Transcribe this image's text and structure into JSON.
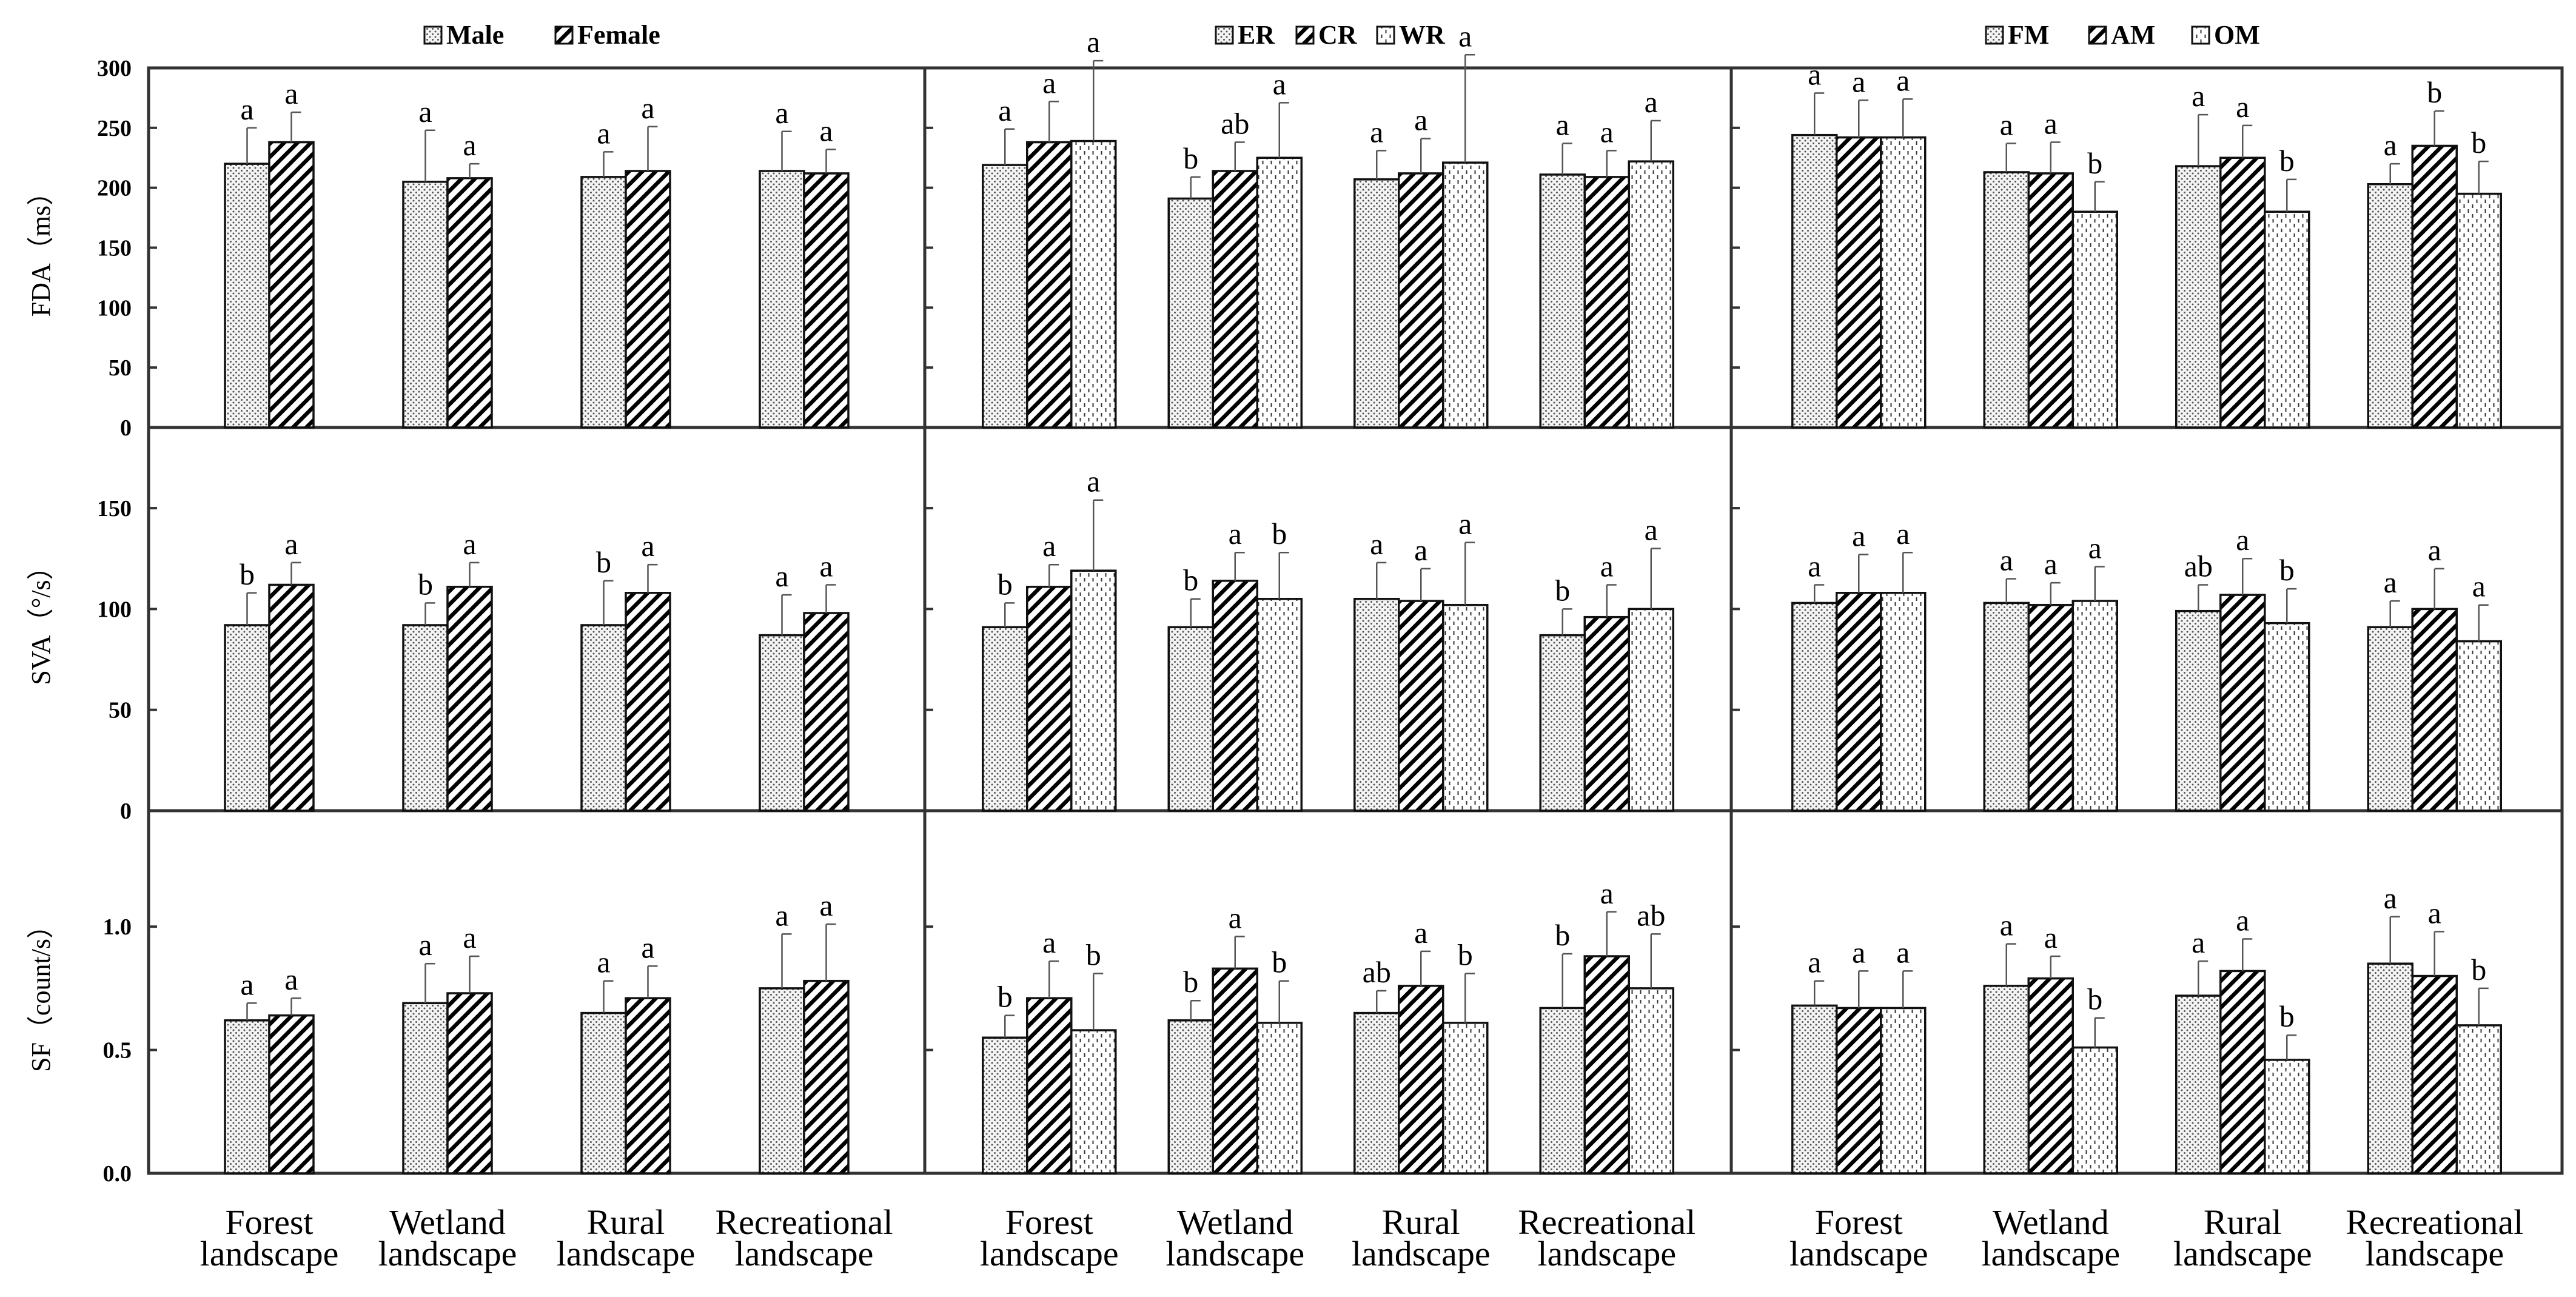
{
  "figure": {
    "landscapes": [
      "Forest landscape",
      "Wetland landscape",
      "Rural landscape",
      "Recreational landscape"
    ],
    "landscape_lines": [
      [
        "Forest",
        "landscape"
      ],
      [
        "Wetland",
        "landscape"
      ],
      [
        "Rural",
        "landscape"
      ],
      [
        "Recreational",
        "landscape"
      ]
    ],
    "patterns": {
      "dots": "fine dotted fill (Male / ER / FM)",
      "diag": "bold diagonal hatch (Female / CR / AM)",
      "dash": "vertical dashed fill (WR / OM)"
    }
  },
  "chart_data": [
    {
      "type": "bar",
      "grouping": "Gender",
      "title": "",
      "legend": [
        {
          "name": "Male",
          "pattern": "dots"
        },
        {
          "name": "Female",
          "pattern": "diag"
        }
      ],
      "categories": [
        "Forest landscape",
        "Wetland landscape",
        "Rural landscape",
        "Recreational landscape"
      ],
      "rows": [
        {
          "ylabel": "FDA（ms）",
          "ylim": [
            0,
            300
          ],
          "ticks": [
            0,
            50,
            100,
            150,
            200,
            250,
            300
          ],
          "tick_labels": [
            "0",
            "50",
            "100",
            "150",
            "200",
            "250",
            "300"
          ],
          "series": [
            {
              "name": "Male",
              "values": [
                220,
                205,
                209,
                214
              ],
              "errors": [
                30,
                43,
                21,
                33
              ],
              "letters": [
                "a",
                "a",
                "a",
                "a"
              ]
            },
            {
              "name": "Female",
              "values": [
                238,
                208,
                214,
                212
              ],
              "errors": [
                25,
                12,
                37,
                20
              ],
              "letters": [
                "a",
                "a",
                "a",
                "a"
              ]
            }
          ]
        },
        {
          "ylabel": "SVA（°/s）",
          "ylim": [
            0,
            190
          ],
          "ticks": [
            0,
            50,
            100,
            150
          ],
          "tick_labels": [
            "0",
            "50",
            "100",
            "150"
          ],
          "series": [
            {
              "name": "Male",
              "values": [
                92,
                92,
                92,
                87
              ],
              "errors": [
                16,
                11,
                22,
                20
              ],
              "letters": [
                "b",
                "b",
                "b",
                "a"
              ]
            },
            {
              "name": "Female",
              "values": [
                112,
                111,
                108,
                98
              ],
              "errors": [
                11,
                12,
                14,
                14
              ],
              "letters": [
                "a",
                "a",
                "a",
                "a"
              ]
            }
          ]
        },
        {
          "ylabel": "SF（count/s）",
          "ylim": [
            0,
            1.47
          ],
          "ticks": [
            0,
            0.5,
            1.0
          ],
          "tick_labels": [
            "0.0",
            "0.5",
            "1.0"
          ],
          "series": [
            {
              "name": "Male",
              "values": [
                0.62,
                0.69,
                0.65,
                0.75
              ],
              "errors": [
                0.07,
                0.16,
                0.13,
                0.22
              ],
              "letters": [
                "a",
                "a",
                "a",
                "a"
              ]
            },
            {
              "name": "Female",
              "values": [
                0.64,
                0.73,
                0.71,
                0.78
              ],
              "errors": [
                0.07,
                0.15,
                0.13,
                0.23
              ],
              "letters": [
                "a",
                "a",
                "a",
                "a"
              ]
            }
          ]
        }
      ]
    },
    {
      "type": "bar",
      "grouping": "Residence",
      "title": "",
      "legend": [
        {
          "name": "ER",
          "pattern": "dots"
        },
        {
          "name": "CR",
          "pattern": "diag"
        },
        {
          "name": "WR",
          "pattern": "dash"
        }
      ],
      "categories": [
        "Forest landscape",
        "Wetland landscape",
        "Rural landscape",
        "Recreational landscape"
      ],
      "rows": [
        {
          "ylabel": "FDA（ms）",
          "ylim": [
            0,
            300
          ],
          "series": [
            {
              "name": "ER",
              "values": [
                219,
                191,
                207,
                211
              ],
              "errors": [
                30,
                18,
                24,
                26
              ],
              "letters": [
                "a",
                "b",
                "a",
                "a"
              ]
            },
            {
              "name": "CR",
              "values": [
                238,
                214,
                212,
                209
              ],
              "errors": [
                34,
                24,
                29,
                22
              ],
              "letters": [
                "a",
                "ab",
                "a",
                "a"
              ]
            },
            {
              "name": "WR",
              "values": [
                239,
                225,
                221,
                222
              ],
              "errors": [
                67,
                46,
                90,
                34
              ],
              "letters": [
                "a",
                "a",
                "a",
                "a"
              ]
            }
          ]
        },
        {
          "ylabel": "SVA（°/s）",
          "ylim": [
            0,
            190
          ],
          "series": [
            {
              "name": "ER",
              "values": [
                91,
                91,
                105,
                87
              ],
              "errors": [
                12,
                14,
                18,
                13
              ],
              "letters": [
                "b",
                "b",
                "a",
                "b"
              ]
            },
            {
              "name": "CR",
              "values": [
                111,
                114,
                104,
                96
              ],
              "errors": [
                11,
                14,
                16,
                16
              ],
              "letters": [
                "a",
                "a",
                "a",
                "a"
              ]
            },
            {
              "name": "WR",
              "values": [
                119,
                105,
                102,
                100
              ],
              "errors": [
                35,
                23,
                31,
                30
              ],
              "letters": [
                "a",
                "b",
                "a",
                "a"
              ]
            }
          ]
        },
        {
          "ylabel": "SF（count/s）",
          "ylim": [
            0,
            1.47
          ],
          "series": [
            {
              "name": "ER",
              "values": [
                0.55,
                0.62,
                0.65,
                0.67
              ],
              "errors": [
                0.09,
                0.08,
                0.09,
                0.22
              ],
              "letters": [
                "b",
                "b",
                "ab",
                "b"
              ]
            },
            {
              "name": "CR",
              "values": [
                0.71,
                0.83,
                0.76,
                0.88
              ],
              "errors": [
                0.15,
                0.13,
                0.14,
                0.18
              ],
              "letters": [
                "a",
                "a",
                "a",
                "a"
              ]
            },
            {
              "name": "WR",
              "values": [
                0.58,
                0.61,
                0.61,
                0.75
              ],
              "errors": [
                0.23,
                0.17,
                0.2,
                0.22
              ],
              "letters": [
                "b",
                "b",
                "b",
                "ab"
              ]
            }
          ]
        }
      ]
    },
    {
      "type": "bar",
      "grouping": "Identity",
      "title": "",
      "legend": [
        {
          "name": "FM",
          "pattern": "dots"
        },
        {
          "name": "AM",
          "pattern": "diag"
        },
        {
          "name": "OM",
          "pattern": "dash"
        }
      ],
      "categories": [
        "Forest landscape",
        "Wetland landscape",
        "Rural landscape",
        "Recreational landscape"
      ],
      "rows": [
        {
          "ylabel": "FDA（ms）",
          "ylim": [
            0,
            300
          ],
          "series": [
            {
              "name": "FM",
              "values": [
                244,
                213,
                218,
                203
              ],
              "errors": [
                35,
                24,
                43,
                17
              ],
              "letters": [
                "a",
                "a",
                "a",
                "a"
              ]
            },
            {
              "name": "AM",
              "values": [
                242,
                212,
                225,
                235
              ],
              "errors": [
                31,
                26,
                27,
                29
              ],
              "letters": [
                "a",
                "a",
                "a",
                "b"
              ]
            },
            {
              "name": "OM",
              "values": [
                242,
                180,
                180,
                195
              ],
              "errors": [
                32,
                25,
                27,
                27
              ],
              "letters": [
                "a",
                "b",
                "b",
                "b"
              ]
            }
          ]
        },
        {
          "ylabel": "SVA（°/s）",
          "ylim": [
            0,
            190
          ],
          "series": [
            {
              "name": "FM",
              "values": [
                103,
                103,
                99,
                91
              ],
              "errors": [
                9,
                12,
                13,
                13
              ],
              "letters": [
                "a",
                "a",
                "ab",
                "a"
              ]
            },
            {
              "name": "AM",
              "values": [
                108,
                102,
                107,
                100
              ],
              "errors": [
                19,
                11,
                18,
                20
              ],
              "letters": [
                "a",
                "a",
                "a",
                "a"
              ]
            },
            {
              "name": "OM",
              "values": [
                108,
                104,
                93,
                84
              ],
              "errors": [
                20,
                17,
                17,
                18
              ],
              "letters": [
                "a",
                "a",
                "b",
                "a"
              ]
            }
          ]
        },
        {
          "ylabel": "SF（count/s）",
          "ylim": [
            0,
            1.47
          ],
          "series": [
            {
              "name": "FM",
              "values": [
                0.68,
                0.76,
                0.72,
                0.85
              ],
              "errors": [
                0.1,
                0.17,
                0.14,
                0.19
              ],
              "letters": [
                "a",
                "a",
                "a",
                "a"
              ]
            },
            {
              "name": "AM",
              "values": [
                0.67,
                0.79,
                0.82,
                0.8
              ],
              "errors": [
                0.15,
                0.09,
                0.13,
                0.18
              ],
              "letters": [
                "a",
                "a",
                "a",
                "a"
              ]
            },
            {
              "name": "OM",
              "values": [
                0.67,
                0.51,
                0.46,
                0.6
              ],
              "errors": [
                0.15,
                0.12,
                0.1,
                0.15
              ],
              "letters": [
                "a",
                "b",
                "b",
                "b"
              ]
            }
          ]
        }
      ]
    }
  ]
}
